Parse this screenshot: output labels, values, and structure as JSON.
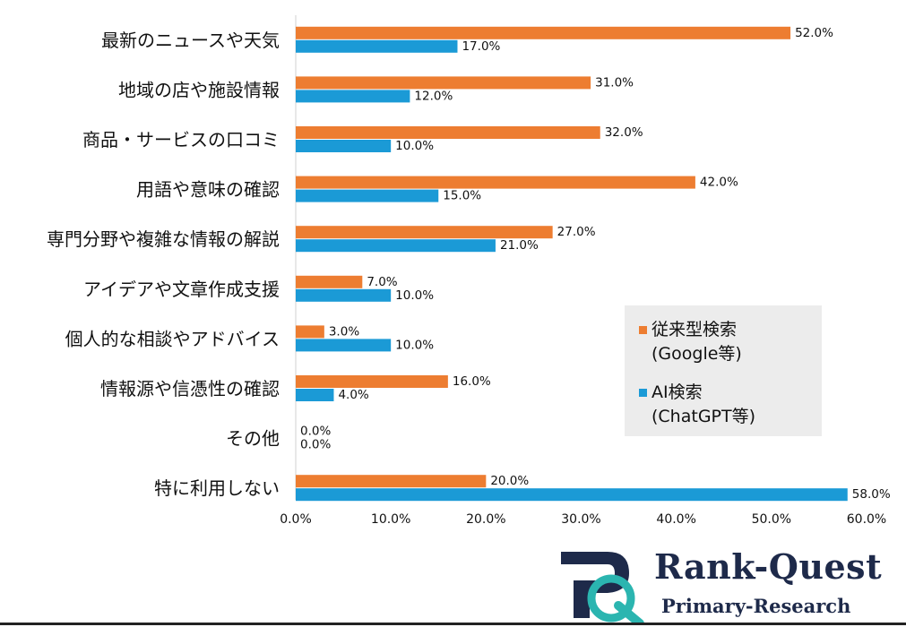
{
  "chart_data": {
    "type": "bar",
    "orientation": "horizontal",
    "categories": [
      "最新のニュースや天気",
      "地域の店や施設情報",
      "商品・サービスの口コミ",
      "用語や意味の確認",
      "専門分野や複雑な情報の解説",
      "アイデアや文章作成支援",
      "個人的な相談やアドバイス",
      "情報源や信憑性の確認",
      "その他",
      "特に利用しない"
    ],
    "series": [
      {
        "name": "従来型検索(Google等)",
        "color": "#ed7d31",
        "values": [
          52.0,
          31.0,
          32.0,
          42.0,
          27.0,
          7.0,
          3.0,
          16.0,
          0.0,
          20.0
        ],
        "labels": [
          "52.0%",
          "31.0%",
          "32.0%",
          "42.0%",
          "27.0%",
          "7.0%",
          "3.0%",
          "16.0%",
          "0.0%",
          "20.0%"
        ]
      },
      {
        "name": "AI検索(ChatGPT等)",
        "color": "#1b9ad6",
        "values": [
          17.0,
          12.0,
          10.0,
          15.0,
          21.0,
          10.0,
          10.0,
          4.0,
          0.0,
          58.0
        ],
        "labels": [
          "17.0%",
          "12.0%",
          "10.0%",
          "15.0%",
          "21.0%",
          "10.0%",
          "10.0%",
          "4.0%",
          "0.0%",
          "58.0%"
        ]
      }
    ],
    "xlim": [
      0,
      60
    ],
    "xticks": [
      "0.0%",
      "10.0%",
      "20.0%",
      "30.0%",
      "40.0%",
      "50.0%",
      "60.0%"
    ],
    "legend_position": "right",
    "grid": false
  },
  "legend": {
    "item1_line1": "従来型検索",
    "item1_line2": "(Google等)",
    "item2_line1": "AI検索",
    "item2_line2": "(ChatGPT等)"
  },
  "brand": {
    "name": "Rank-Quest",
    "tagline": "Primary-Research",
    "accent": "#2bb5b0",
    "navy": "#1e2a4a"
  }
}
